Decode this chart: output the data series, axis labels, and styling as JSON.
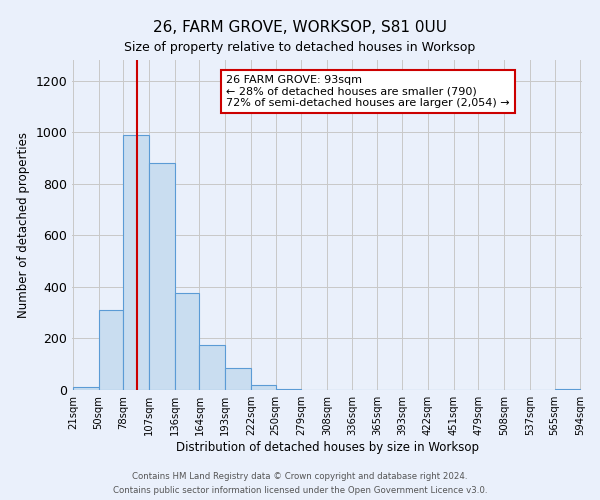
{
  "title": "26, FARM GROVE, WORKSOP, S81 0UU",
  "subtitle": "Size of property relative to detached houses in Worksop",
  "xlabel": "Distribution of detached houses by size in Worksop",
  "ylabel": "Number of detached properties",
  "bin_edges": [
    21,
    50,
    78,
    107,
    136,
    164,
    193,
    222,
    250,
    279,
    308,
    336,
    365,
    393,
    422,
    451,
    479,
    508,
    537,
    565,
    594
  ],
  "bar_heights": [
    10,
    310,
    990,
    880,
    375,
    175,
    85,
    20,
    5,
    0,
    0,
    0,
    0,
    0,
    0,
    0,
    0,
    0,
    0,
    5
  ],
  "bar_color": "#c9ddf0",
  "bar_edge_color": "#5b9bd5",
  "background_color": "#eaf0fb",
  "grid_color": "#c8c8c8",
  "property_size": 93,
  "red_line_color": "#cc0000",
  "annotation_title": "26 FARM GROVE: 93sqm",
  "annotation_line1": "← 28% of detached houses are smaller (790)",
  "annotation_line2": "72% of semi-detached houses are larger (2,054) →",
  "annotation_box_color": "#ffffff",
  "annotation_border_color": "#cc0000",
  "ylim": [
    0,
    1280
  ],
  "yticks": [
    0,
    200,
    400,
    600,
    800,
    1000,
    1200
  ],
  "footer_line1": "Contains HM Land Registry data © Crown copyright and database right 2024.",
  "footer_line2": "Contains public sector information licensed under the Open Government Licence v3.0."
}
